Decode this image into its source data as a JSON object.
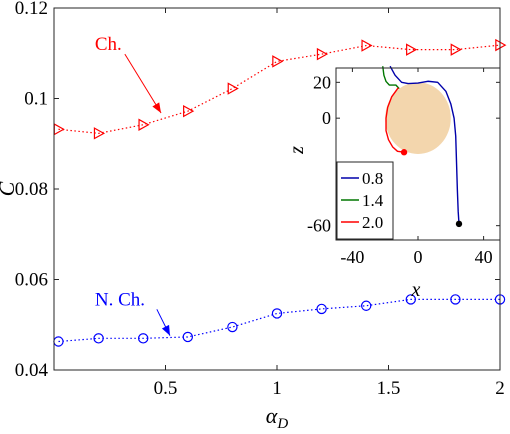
{
  "chart_data": [
    {
      "type": "line",
      "title": "",
      "xlabel": "α_D",
      "ylabel": "C̄",
      "xlim": [
        0,
        2
      ],
      "ylim": [
        0.04,
        0.12
      ],
      "x_ticks": [
        0.5,
        1,
        1.5,
        2
      ],
      "x_tick_labels": [
        "0.5",
        "1",
        "1.5",
        "2"
      ],
      "y_ticks": [
        0.04,
        0.06,
        0.08,
        0.1,
        0.12
      ],
      "y_tick_labels": [
        "0.04",
        "0.06",
        "0.08",
        "0.1",
        "0.12"
      ],
      "grid": false,
      "series": [
        {
          "name": "Ch.",
          "color": "#ff0000",
          "marker": "triangle-right",
          "x": [
            0.02,
            0.2,
            0.4,
            0.6,
            0.8,
            1.0,
            1.2,
            1.4,
            1.6,
            1.8,
            2.0
          ],
          "y": [
            0.0932,
            0.0923,
            0.0942,
            0.0972,
            0.1022,
            0.1082,
            0.1098,
            0.1117,
            0.1108,
            0.1108,
            0.1118
          ]
        },
        {
          "name": "N. Ch.",
          "color": "#0000ff",
          "marker": "circle",
          "x": [
            0.02,
            0.2,
            0.4,
            0.6,
            0.8,
            1.0,
            1.2,
            1.4,
            1.6,
            1.8,
            2.0
          ],
          "y": [
            0.0463,
            0.047,
            0.047,
            0.0473,
            0.0495,
            0.0525,
            0.0535,
            0.0542,
            0.0556,
            0.0556,
            0.0556
          ]
        }
      ],
      "annotations": [
        {
          "text": "Ch.",
          "color": "#ff0000",
          "text_at": [
            -0.05,
            0.1107
          ],
          "arrow_to": [
            0.48,
            0.0968
          ]
        },
        {
          "text": "N. Ch.",
          "color": "#0000ff",
          "text_at": [
            -0.05,
            0.0543
          ],
          "arrow_to": [
            0.52,
            0.0476
          ]
        }
      ]
    },
    {
      "type": "line",
      "title": "",
      "xlabel": "x",
      "ylabel": "z",
      "xlim": [
        -50,
        50
      ],
      "ylim": [
        -68,
        28
      ],
      "x_ticks": [
        -40,
        0,
        40
      ],
      "x_tick_labels": [
        "-40",
        "0",
        "40"
      ],
      "y_ticks": [
        -60,
        0,
        20
      ],
      "y_tick_labels": [
        "-60",
        "0",
        "20"
      ],
      "legend_position": "bottom-left",
      "obstacle": {
        "shape": "circle",
        "center": [
          0,
          0
        ],
        "radius": 20,
        "color": "#f3d6ad"
      },
      "series": [
        {
          "name": "0.8",
          "color": "#0000aa",
          "x": [
            -17,
            -14,
            -10,
            -6,
            0,
            6,
            12,
            17,
            20,
            22,
            23,
            23.5,
            24,
            24.5,
            25
          ],
          "y": [
            29,
            24,
            20,
            19.3,
            19.6,
            20.6,
            20,
            15,
            8,
            0,
            -10,
            -25,
            -40,
            -52,
            -59
          ],
          "end_marker": {
            "x": 25,
            "y": -59,
            "color": "#000000"
          }
        },
        {
          "name": "1.4",
          "color": "#007700",
          "x": [
            -21.5,
            -20.8,
            -19.5,
            -17.5,
            -15.5,
            -13.5,
            -11.5
          ],
          "y": [
            29,
            24,
            20.5,
            18.5,
            18.5,
            18.5,
            16.5
          ]
        },
        {
          "name": "2.0",
          "color": "#ff0000",
          "x": [
            -12,
            -16,
            -18.5,
            -19.5,
            -19.5,
            -18,
            -15.5,
            -12.5,
            -8.5
          ],
          "y": [
            17,
            12,
            6,
            0,
            -7,
            -12,
            -16,
            -18.5,
            -19
          ],
          "end_marker": {
            "x": -8.5,
            "y": -19,
            "color": "#ff0000"
          }
        }
      ]
    }
  ]
}
